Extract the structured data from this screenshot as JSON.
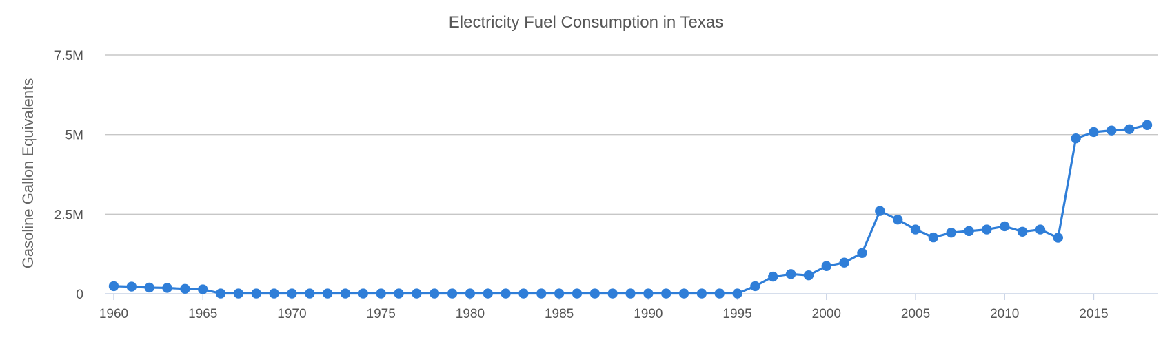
{
  "chart_data": {
    "type": "line",
    "title": "Electricity Fuel Consumption in Texas",
    "xlabel": "",
    "ylabel": "Gasoline Gallon Equivalents",
    "ylim": [
      0,
      7500000
    ],
    "y_ticks": [
      0,
      2500000,
      5000000,
      7500000
    ],
    "y_tick_labels": [
      "0",
      "2.5M",
      "5M",
      "7.5M"
    ],
    "x_ticks": [
      1960,
      1965,
      1970,
      1975,
      1980,
      1985,
      1990,
      1995,
      2000,
      2005,
      2010,
      2015
    ],
    "x_tick_labels": [
      "1960",
      "1965",
      "1970",
      "1975",
      "1980",
      "1985",
      "1990",
      "1995",
      "2000",
      "2005",
      "2010",
      "2015"
    ],
    "xlim": [
      1960,
      2018
    ],
    "grid": true,
    "legend": "none",
    "color": "#2f7ed8",
    "x": [
      1960,
      1961,
      1962,
      1963,
      1964,
      1965,
      1966,
      1967,
      1968,
      1969,
      1970,
      1971,
      1972,
      1973,
      1974,
      1975,
      1976,
      1977,
      1978,
      1979,
      1980,
      1981,
      1982,
      1983,
      1984,
      1985,
      1986,
      1987,
      1988,
      1989,
      1990,
      1991,
      1992,
      1993,
      1994,
      1995,
      1996,
      1997,
      1998,
      1999,
      2000,
      2001,
      2002,
      2003,
      2004,
      2005,
      2006,
      2007,
      2008,
      2009,
      2010,
      2011,
      2012,
      2013,
      2014,
      2015,
      2016,
      2017,
      2018
    ],
    "series": [
      {
        "values": [
          240000,
          225000,
          195000,
          185000,
          155000,
          140000,
          10000,
          10000,
          10000,
          10000,
          10000,
          10000,
          10000,
          10000,
          10000,
          10000,
          10000,
          10000,
          10000,
          10000,
          10000,
          10000,
          10000,
          10000,
          10000,
          10000,
          10000,
          10000,
          10000,
          10000,
          10000,
          10000,
          10000,
          10000,
          10000,
          10000,
          240000,
          540000,
          620000,
          580000,
          870000,
          980000,
          1280000,
          2600000,
          2330000,
          2020000,
          1770000,
          1920000,
          1970000,
          2020000,
          2120000,
          1950000,
          2020000,
          1760000,
          4880000,
          5080000,
          5130000,
          5170000,
          5300000
        ]
      }
    ]
  }
}
